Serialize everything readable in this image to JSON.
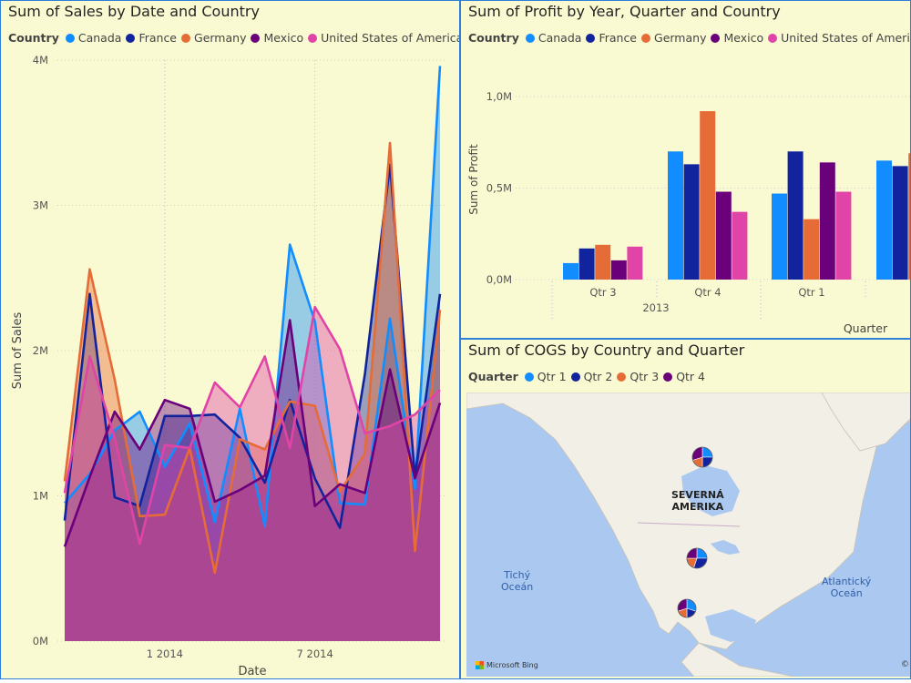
{
  "colors": {
    "Canada": "#118dff",
    "France": "#12239e",
    "Germany": "#e66c37",
    "Mexico": "#6b007b",
    "United States of America": "#e044a7",
    "Qtr 1": "#118dff",
    "Qtr 2": "#12239e",
    "Qtr 3": "#e66c37",
    "Qtr 4": "#6b007b"
  },
  "chart_data": [
    {
      "type": "area",
      "title": "Sum of Sales by Date and Country",
      "legend_title": "Country",
      "legend_position": "top-left",
      "xlabel": "Date",
      "ylabel": "Sum of Sales",
      "x_ticks": [
        "1 2014",
        "7 2014"
      ],
      "y_ticks": [
        "0M",
        "1M",
        "2M",
        "3M",
        "4M"
      ],
      "ylim": [
        0,
        4000000
      ],
      "grid": true,
      "x": [
        "2013-09",
        "2013-10",
        "2013-11",
        "2013-12",
        "2014-01",
        "2014-02",
        "2014-03",
        "2014-04",
        "2014-05",
        "2014-06",
        "2014-07",
        "2014-08",
        "2014-09",
        "2014-10",
        "2014-11",
        "2014-12"
      ],
      "series": [
        {
          "name": "Canada",
          "values": [
            950000,
            1150000,
            1450000,
            1580000,
            1200000,
            1500000,
            820000,
            1600000,
            790000,
            2730000,
            2200000,
            950000,
            940000,
            2220000,
            1050000,
            3960000
          ]
        },
        {
          "name": "France",
          "values": [
            830000,
            2390000,
            990000,
            930000,
            1550000,
            1550000,
            1560000,
            1400000,
            1090000,
            1660000,
            1120000,
            780000,
            1840000,
            3280000,
            1130000,
            2390000
          ]
        },
        {
          "name": "Germany",
          "values": [
            1100000,
            2560000,
            1800000,
            860000,
            870000,
            1330000,
            470000,
            1390000,
            1320000,
            1650000,
            1620000,
            1030000,
            1290000,
            3430000,
            620000,
            2280000
          ]
        },
        {
          "name": "Mexico",
          "values": [
            650000,
            1130000,
            1580000,
            1320000,
            1660000,
            1600000,
            960000,
            1040000,
            1140000,
            2210000,
            930000,
            1080000,
            1020000,
            1870000,
            1120000,
            1640000
          ]
        },
        {
          "name": "United States of America",
          "values": [
            1020000,
            1960000,
            1400000,
            670000,
            1350000,
            1330000,
            1780000,
            1610000,
            1960000,
            1330000,
            2300000,
            2010000,
            1430000,
            1480000,
            1560000,
            1730000
          ]
        }
      ]
    },
    {
      "type": "bar",
      "title": "Sum of Profit by Year, Quarter and Country",
      "legend_title": "Country",
      "legend_position": "top-left",
      "xlabel": "Quarter",
      "ylabel": "Sum of Profit",
      "y_ticks": [
        "0,0M",
        "0,5M",
        "1,0M"
      ],
      "ylim": [
        0,
        1100000
      ],
      "grid": true,
      "categories": [
        "Qtr 3",
        "Qtr 4",
        "Qtr 1",
        "Q"
      ],
      "year_labels": [
        "2013"
      ],
      "series": [
        {
          "name": "Canada",
          "values": [
            90000,
            700000,
            470000,
            650000
          ]
        },
        {
          "name": "France",
          "values": [
            170000,
            630000,
            700000,
            620000
          ]
        },
        {
          "name": "Germany",
          "values": [
            190000,
            920000,
            330000,
            690000
          ]
        },
        {
          "name": "Mexico",
          "values": [
            105000,
            480000,
            640000,
            null
          ]
        },
        {
          "name": "United States of America",
          "values": [
            180000,
            370000,
            480000,
            null
          ]
        }
      ]
    },
    {
      "type": "map",
      "title": "Sum of COGS by Country and Quarter",
      "legend_title": "Quarter",
      "legend_position": "top-left",
      "series_names": [
        "Qtr 1",
        "Qtr 2",
        "Qtr 3",
        "Qtr 4"
      ],
      "pies": [
        {
          "location": "Canada",
          "values": [
            25,
            25,
            20,
            30
          ]
        },
        {
          "location": "United States of America",
          "values": [
            25,
            30,
            20,
            25
          ]
        },
        {
          "location": "Mexico",
          "values": [
            30,
            20,
            20,
            30
          ]
        }
      ],
      "map_labels": {
        "continent_line1": "SEVERNÁ",
        "continent_line2": "AMERIKA",
        "pacific_line1": "Tichý",
        "pacific_line2": "Oceán",
        "atlantic_line1": "Atlantický",
        "atlantic_line2": "Oceán"
      },
      "attribution": "Microsoft Bing",
      "copyright": "©"
    }
  ]
}
